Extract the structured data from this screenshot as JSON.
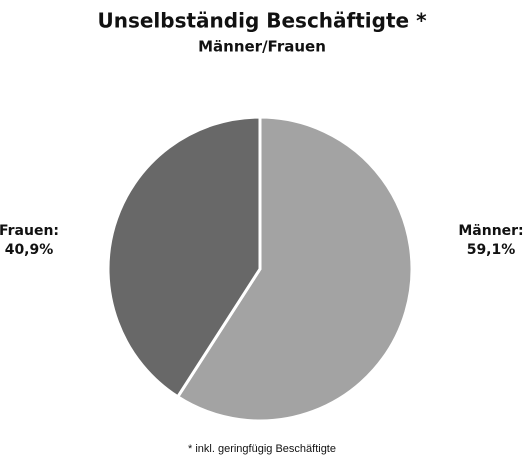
{
  "chart_data": {
    "type": "pie",
    "title": "Unselbständig Beschäftigte *",
    "subtitle": "Männer/Frauen",
    "categories": [
      "Männer:",
      "Frauen:"
    ],
    "values": [
      59.1,
      40.9
    ],
    "value_labels": [
      "59,1%",
      "40,9%"
    ],
    "colors": [
      "#a3a3a3",
      "#686868"
    ],
    "footnote": "* inkl. geringfügig Beschäftigte"
  }
}
